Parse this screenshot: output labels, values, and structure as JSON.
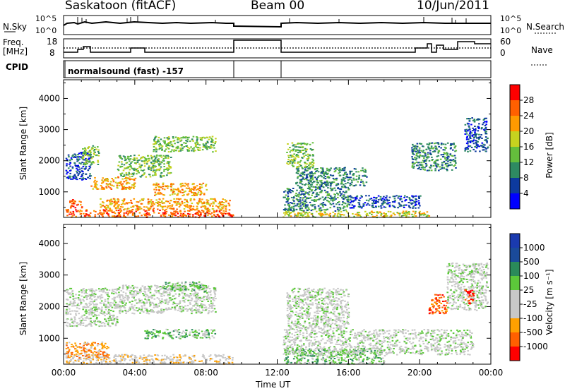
{
  "header": {
    "station": "Saskatoon (fitACF)",
    "beam": "Beam 00",
    "date": "10/Jun/2011"
  },
  "top_panels": {
    "nsky_label": "N.Sky",
    "nsky_ticks": [
      "10^5",
      "10^0"
    ],
    "nsearch_label": "N.Search",
    "nsearch_ticks": [
      "10^5",
      "10^0"
    ],
    "freq_label": [
      "Freq.",
      "[MHz]"
    ],
    "freq_ticks": [
      "18",
      "8"
    ],
    "nave_label": "Nave",
    "nave_ticks": [
      "60",
      "0"
    ],
    "cpid_label": "CPID",
    "cpid_value": "normalsound (fast) -157"
  },
  "colors": {
    "power_scale": [
      "#0000ff",
      "#0d3a9e",
      "#2e8a62",
      "#64be3c",
      "#c6d21f",
      "#ff9a00",
      "#ff6000",
      "#ff0000"
    ],
    "velocity_scale": [
      "#ff0000",
      "#ff6000",
      "#ffa000",
      "#c8c8c8",
      "#c8c8c8",
      "#5cc83a",
      "#2a8a5a",
      "#1a4a9a",
      "#1a3aaf"
    ]
  },
  "chart_data": [
    {
      "type": "heatmap",
      "panel": "power",
      "ylabel": "Slant Range [km]",
      "y_ticks": [
        "1000",
        "2000",
        "3000",
        "4000"
      ],
      "ylim": [
        180,
        4600
      ],
      "colorbar_label": "Power [dB]",
      "colorbar_ticks": [
        "4",
        "8",
        "12",
        "16",
        "20",
        "24",
        "28"
      ],
      "data_gap_ut": [
        "09:30",
        "12:15"
      ],
      "patches": [
        {
          "t0": 0.1,
          "t1": 9.5,
          "r0": 200,
          "r1": 450,
          "level": 6
        },
        {
          "t0": 2.0,
          "t1": 9.3,
          "r0": 450,
          "r1": 800,
          "level": 5
        },
        {
          "t0": 5.0,
          "t1": 8.0,
          "r0": 900,
          "r1": 1300,
          "level": 5
        },
        {
          "t0": 1.5,
          "t1": 4.0,
          "r0": 1100,
          "r1": 1500,
          "level": 5
        },
        {
          "t0": 0.1,
          "t1": 1.5,
          "r0": 1400,
          "r1": 2300,
          "level": 1
        },
        {
          "t0": 1.0,
          "t1": 2.0,
          "r0": 1900,
          "r1": 2500,
          "level": 3
        },
        {
          "t0": 3.0,
          "t1": 6.0,
          "r0": 1500,
          "r1": 2200,
          "level": 3
        },
        {
          "t0": 5.0,
          "t1": 8.5,
          "r0": 2300,
          "r1": 2800,
          "level": 3
        },
        {
          "t0": 0.3,
          "t1": 1.0,
          "r0": 500,
          "r1": 800,
          "level": 6
        },
        {
          "t0": 12.3,
          "t1": 20.5,
          "r0": 200,
          "r1": 400,
          "level": 4
        },
        {
          "t0": 12.3,
          "t1": 16.0,
          "r0": 400,
          "r1": 1200,
          "level": 2
        },
        {
          "t0": 13.0,
          "t1": 17.0,
          "r0": 1200,
          "r1": 1800,
          "level": 2
        },
        {
          "t0": 12.5,
          "t1": 14.0,
          "r0": 1800,
          "r1": 2600,
          "level": 3
        },
        {
          "t0": 16.0,
          "t1": 20.0,
          "r0": 500,
          "r1": 900,
          "level": 1
        },
        {
          "t0": 19.5,
          "t1": 22.0,
          "r0": 1700,
          "r1": 2600,
          "level": 2
        },
        {
          "t0": 22.5,
          "t1": 23.8,
          "r0": 2300,
          "r1": 3400,
          "level": 1
        }
      ]
    },
    {
      "type": "heatmap",
      "panel": "velocity",
      "ylabel": "Slant Range [km]",
      "xlabel": "Time UT",
      "x_ticks": [
        "00:00",
        "04:00",
        "08:00",
        "12:00",
        "16:00",
        "20:00",
        "00:00"
      ],
      "y_ticks": [
        "1000",
        "2000",
        "3000",
        "4000"
      ],
      "ylim": [
        180,
        4600
      ],
      "colorbar_label": "Velocity [m s⁻¹]",
      "colorbar_ticks": [
        "1000",
        "500",
        "100",
        "25",
        "-25",
        "-100",
        "-500",
        "-1000"
      ],
      "patches": [
        {
          "t0": 0.1,
          "t1": 9.5,
          "r0": 200,
          "r1": 500,
          "level": 3
        },
        {
          "t0": 0.1,
          "t1": 2.5,
          "r0": 400,
          "r1": 900,
          "level": 2
        },
        {
          "t0": 4.5,
          "t1": 8.5,
          "r0": 1000,
          "r1": 1300,
          "level": 5
        },
        {
          "t0": 0.1,
          "t1": 3.0,
          "r0": 1400,
          "r1": 2600,
          "level": 4
        },
        {
          "t0": 3.0,
          "t1": 8.5,
          "r0": 1800,
          "r1": 2700,
          "level": 4
        },
        {
          "t0": 5.5,
          "t1": 8.0,
          "r0": 2500,
          "r1": 2800,
          "level": 5
        },
        {
          "t0": 12.3,
          "t1": 18.0,
          "r0": 200,
          "r1": 700,
          "level": 5
        },
        {
          "t0": 12.3,
          "t1": 23.0,
          "r0": 500,
          "r1": 1300,
          "level": 4
        },
        {
          "t0": 12.5,
          "t1": 16.0,
          "r0": 1300,
          "r1": 2600,
          "level": 4
        },
        {
          "t0": 20.5,
          "t1": 21.5,
          "r0": 1800,
          "r1": 2400,
          "level": 1
        },
        {
          "t0": 21.5,
          "t1": 23.8,
          "r0": 1900,
          "r1": 3400,
          "level": 4
        },
        {
          "t0": 22.5,
          "t1": 23.0,
          "r0": 2100,
          "r1": 2600,
          "level": 0
        }
      ]
    }
  ]
}
